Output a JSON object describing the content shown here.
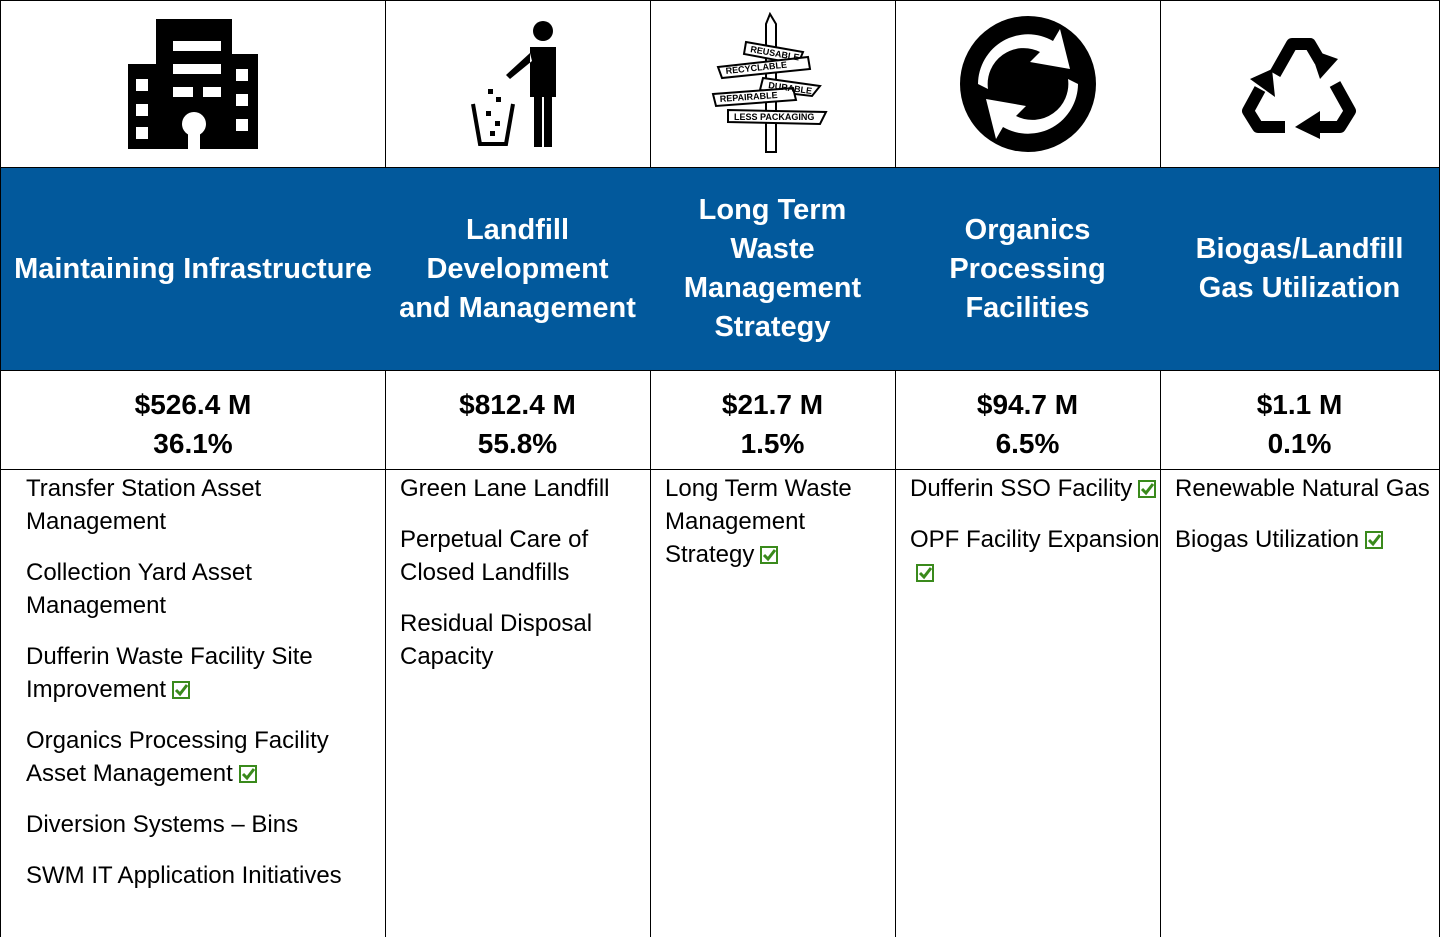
{
  "columns": [
    {
      "header": "Maintaining Infrastructure",
      "amount": "$526.4 M",
      "percent": "36.1%",
      "items": [
        {
          "text": "Transfer Station Asset Management",
          "checked": false
        },
        {
          "text": "Collection Yard Asset Management",
          "checked": false
        },
        {
          "text": "Dufferin Waste Facility Site Improvement",
          "checked": true
        },
        {
          "text": "Organics Processing Facility Asset Management",
          "checked": true
        },
        {
          "text": "Diversion Systems – Bins",
          "checked": false
        },
        {
          "text": "SWM IT Application Initiatives",
          "checked": false
        }
      ]
    },
    {
      "header": "Landfill Development and Management",
      "amount": "$812.4 M",
      "percent": "55.8%",
      "items": [
        {
          "text": "Green Lane Landfill",
          "checked": false
        },
        {
          "text": "Perpetual Care of Closed Landfills",
          "checked": false
        },
        {
          "text": "Residual Disposal Capacity",
          "checked": false
        }
      ]
    },
    {
      "header": "Long Term Waste Management Strategy",
      "amount": "$21.7 M",
      "percent": "1.5%",
      "icon_labels": [
        "REUSABLE",
        "RECYCLABLE",
        "DURABLE",
        "REPAIRABLE",
        "LESS PACKAGING"
      ],
      "items": [
        {
          "text": "Long Term Waste Management Strategy",
          "checked": true
        }
      ]
    },
    {
      "header": "Organics Processing Facilities",
      "amount": "$94.7 M",
      "percent": "6.5%",
      "items": [
        {
          "text": "Dufferin SSO Facility",
          "checked": true
        },
        {
          "text": "OPF Facility Expansion",
          "checked": true
        }
      ]
    },
    {
      "header": "Biogas/Landfill Gas Utilization",
      "amount": "$1.1 M",
      "percent": "0.1%",
      "items": [
        {
          "text": "Renewable Natural Gas",
          "checked": false
        },
        {
          "text": "Biogas Utilization",
          "checked": true
        }
      ]
    }
  ]
}
